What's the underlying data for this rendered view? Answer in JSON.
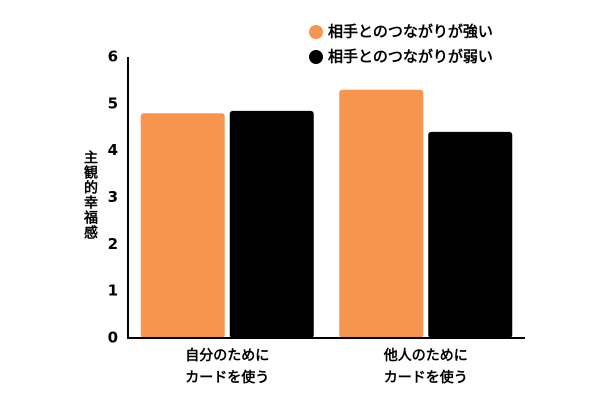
{
  "chart_data": {
    "type": "bar",
    "y_label": "主観的幸福感",
    "categories": [
      [
        "自分のために",
        "カードを使う"
      ],
      [
        "他人のために",
        "カードを使う"
      ]
    ],
    "series": [
      {
        "name": "相手とのつながりが強い",
        "color": "#f7954f",
        "values": [
          4.8,
          5.3
        ]
      },
      {
        "name": "相手とのつながりが弱い",
        "color": "#000000",
        "values": [
          4.85,
          4.4
        ]
      }
    ],
    "ylim": [
      0,
      6
    ],
    "yticks": [
      0,
      1,
      2,
      3,
      4,
      5,
      6
    ],
    "legend": "upper right",
    "grid": false
  }
}
